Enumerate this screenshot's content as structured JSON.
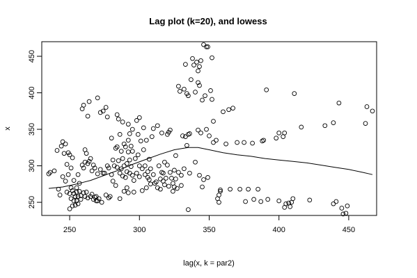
{
  "chart_data": {
    "type": "scatter",
    "title": "Lag plot (k=20), and lowess",
    "xlabel": "lag(x, k = par2)",
    "ylabel": "x",
    "xlim": [
      230,
      470
    ],
    "ylim": [
      232,
      470
    ],
    "x_ticks": [
      250,
      300,
      350,
      400,
      450
    ],
    "y_ticks": [
      250,
      300,
      350,
      400,
      450
    ],
    "grid": false,
    "legend": "none",
    "series": [
      {
        "points": [
          [
            235,
            289
          ],
          [
            236,
            291
          ],
          [
            239,
            293
          ],
          [
            241,
            321
          ],
          [
            242,
            268
          ],
          [
            243,
            260
          ],
          [
            244,
            327
          ],
          [
            245,
            333
          ],
          [
            245,
            285
          ],
          [
            246,
            317
          ],
          [
            247,
            330
          ],
          [
            247,
            279
          ],
          [
            248,
            302
          ],
          [
            248,
            264
          ],
          [
            249,
            318
          ],
          [
            249,
            288
          ],
          [
            250,
            262
          ],
          [
            250,
            241
          ],
          [
            250,
            315
          ],
          [
            251,
            297
          ],
          [
            251,
            270
          ],
          [
            251,
            255
          ],
          [
            252,
            311
          ],
          [
            252,
            266
          ],
          [
            252,
            245
          ],
          [
            253,
            280
          ],
          [
            253,
            262
          ],
          [
            253,
            252
          ],
          [
            254,
            258
          ],
          [
            254,
            246
          ],
          [
            255,
            270
          ],
          [
            255,
            264
          ],
          [
            255,
            252
          ],
          [
            256,
            288
          ],
          [
            256,
            258
          ],
          [
            256,
            248
          ],
          [
            257,
            276
          ],
          [
            257,
            265
          ],
          [
            258,
            259
          ],
          [
            258,
            254
          ],
          [
            259,
            378
          ],
          [
            259,
            301
          ],
          [
            260,
            383
          ],
          [
            260,
            297
          ],
          [
            260,
            263
          ],
          [
            261,
            322
          ],
          [
            261,
            305
          ],
          [
            261,
            258
          ],
          [
            262,
            317
          ],
          [
            262,
            264
          ],
          [
            263,
            368
          ],
          [
            263,
            303
          ],
          [
            263,
            256
          ],
          [
            264,
            388
          ],
          [
            264,
            306
          ],
          [
            265,
            310
          ],
          [
            265,
            258
          ],
          [
            266,
            293
          ],
          [
            266,
            261
          ],
          [
            267,
            301
          ],
          [
            267,
            254
          ],
          [
            268,
            297
          ],
          [
            268,
            257
          ],
          [
            269,
            258
          ],
          [
            269,
            252
          ],
          [
            270,
            393
          ],
          [
            270,
            289
          ],
          [
            270,
            252
          ],
          [
            271,
            255
          ],
          [
            272,
            373
          ],
          [
            272,
            295
          ],
          [
            273,
            250
          ],
          [
            274,
            375
          ],
          [
            274,
            290
          ],
          [
            275,
            290
          ],
          [
            276,
            380
          ],
          [
            276,
            260
          ],
          [
            277,
            367
          ],
          [
            277,
            300
          ],
          [
            278,
            297
          ],
          [
            278,
            256
          ],
          [
            279,
            258
          ],
          [
            280,
            338
          ],
          [
            280,
            288
          ],
          [
            281,
            308
          ],
          [
            281,
            279
          ],
          [
            282,
            300
          ],
          [
            283,
            324
          ],
          [
            283,
            273
          ],
          [
            284,
            370
          ],
          [
            284,
            326
          ],
          [
            284,
            298
          ],
          [
            285,
            364
          ],
          [
            285,
            307
          ],
          [
            286,
            343
          ],
          [
            286,
            290
          ],
          [
            286,
            255
          ],
          [
            287,
            320
          ],
          [
            287,
            296
          ],
          [
            288,
            360
          ],
          [
            288,
            310
          ],
          [
            288,
            286
          ],
          [
            289,
            330
          ],
          [
            289,
            300
          ],
          [
            289,
            265
          ],
          [
            290,
            326
          ],
          [
            290,
            284
          ],
          [
            291,
            303
          ],
          [
            291,
            292
          ],
          [
            291,
            270
          ],
          [
            292,
            357
          ],
          [
            292,
            335
          ],
          [
            292,
            319
          ],
          [
            292,
            263
          ],
          [
            293,
            344
          ],
          [
            293,
            308
          ],
          [
            293,
            290
          ],
          [
            294,
            327
          ],
          [
            294,
            299
          ],
          [
            295,
            350
          ],
          [
            295,
            320
          ],
          [
            295,
            287
          ],
          [
            296,
            280
          ],
          [
            296,
            264
          ],
          [
            297,
            310
          ],
          [
            298,
            362
          ],
          [
            298,
            290
          ],
          [
            299,
            343
          ],
          [
            299,
            315
          ],
          [
            300,
            366
          ],
          [
            300,
            300
          ],
          [
            300,
            285
          ],
          [
            301,
            334
          ],
          [
            302,
            296
          ],
          [
            302,
            266
          ],
          [
            303,
            352
          ],
          [
            303,
            322
          ],
          [
            304,
            300
          ],
          [
            304,
            288
          ],
          [
            305,
            335
          ],
          [
            305,
            270
          ],
          [
            306,
            292
          ],
          [
            306,
            284
          ],
          [
            307,
            309
          ],
          [
            307,
            281
          ],
          [
            308,
            296
          ],
          [
            308,
            275
          ],
          [
            309,
            340
          ],
          [
            310,
            351
          ],
          [
            310,
            288
          ],
          [
            311,
            276
          ],
          [
            312,
            278
          ],
          [
            313,
            355
          ],
          [
            313,
            270
          ],
          [
            314,
            300
          ],
          [
            315,
            282
          ],
          [
            315,
            268
          ],
          [
            316,
            345
          ],
          [
            316,
            291
          ],
          [
            317,
            290
          ],
          [
            317,
            279
          ],
          [
            318,
            305
          ],
          [
            318,
            274
          ],
          [
            319,
            283
          ],
          [
            320,
            343
          ],
          [
            320,
            301
          ],
          [
            321,
            346
          ],
          [
            321,
            272
          ],
          [
            322,
            349
          ],
          [
            322,
            291
          ],
          [
            323,
            283
          ],
          [
            324,
            276
          ],
          [
            324,
            265
          ],
          [
            325,
            294
          ],
          [
            325,
            271
          ],
          [
            326,
            314
          ],
          [
            326,
            282
          ],
          [
            327,
            269
          ],
          [
            328,
            409
          ],
          [
            328,
            291
          ],
          [
            329,
            402
          ],
          [
            330,
            287
          ],
          [
            330,
            273
          ],
          [
            331,
            341
          ],
          [
            332,
            405
          ],
          [
            332,
            296
          ],
          [
            333,
            439
          ],
          [
            333,
            340
          ],
          [
            334,
            399
          ],
          [
            334,
            328
          ],
          [
            335,
            396
          ],
          [
            335,
            343
          ],
          [
            335,
            240
          ],
          [
            336,
            344
          ],
          [
            336,
            290
          ],
          [
            337,
            418
          ],
          [
            338,
            447
          ],
          [
            339,
            438
          ],
          [
            340,
            401
          ],
          [
            340,
            305
          ],
          [
            341,
            442
          ],
          [
            342,
            430
          ],
          [
            342,
            414
          ],
          [
            342,
            349
          ],
          [
            343,
            436
          ],
          [
            343,
            410
          ],
          [
            343,
            287
          ],
          [
            344,
            444
          ],
          [
            344,
            345
          ],
          [
            345,
            390
          ],
          [
            345,
            271
          ],
          [
            346,
            466
          ],
          [
            346,
            281
          ],
          [
            347,
            396
          ],
          [
            348,
            463
          ],
          [
            348,
            350
          ],
          [
            349,
            463
          ],
          [
            349,
            284
          ],
          [
            350,
            341
          ],
          [
            351,
            403
          ],
          [
            352,
            448
          ],
          [
            352,
            391
          ],
          [
            353,
            361
          ],
          [
            353,
            332
          ],
          [
            355,
            335
          ],
          [
            356,
            255
          ],
          [
            357,
            260
          ],
          [
            357,
            250
          ],
          [
            358,
            265
          ],
          [
            358,
            267
          ],
          [
            360,
            374
          ],
          [
            362,
            330
          ],
          [
            364,
            377
          ],
          [
            365,
            268
          ],
          [
            367,
            379
          ],
          [
            370,
            332
          ],
          [
            372,
            268
          ],
          [
            375,
            332
          ],
          [
            376,
            251
          ],
          [
            378,
            268
          ],
          [
            381,
            331
          ],
          [
            382,
            254
          ],
          [
            385,
            268
          ],
          [
            387,
            251
          ],
          [
            388,
            334
          ],
          [
            389,
            335
          ],
          [
            391,
            404
          ],
          [
            392,
            254
          ],
          [
            398,
            338
          ],
          [
            400,
            252
          ],
          [
            400,
            345
          ],
          [
            403,
            340
          ],
          [
            404,
            345
          ],
          [
            404,
            243
          ],
          [
            405,
            248
          ],
          [
            407,
            249
          ],
          [
            408,
            244
          ],
          [
            409,
            250
          ],
          [
            410,
            255
          ],
          [
            411,
            399
          ],
          [
            416,
            353
          ],
          [
            422,
            253
          ],
          [
            433,
            355
          ],
          [
            439,
            359
          ],
          [
            439,
            248
          ],
          [
            441,
            251
          ],
          [
            443,
            386
          ],
          [
            445,
            242
          ],
          [
            446,
            234
          ],
          [
            448,
            235
          ],
          [
            449,
            245
          ],
          [
            462,
            358
          ],
          [
            463,
            381
          ],
          [
            467,
            375
          ]
        ]
      },
      {
        "line": "lowess",
        "points": [
          [
            235,
            269
          ],
          [
            245,
            271
          ],
          [
            255,
            275
          ],
          [
            265,
            280
          ],
          [
            275,
            287
          ],
          [
            285,
            294
          ],
          [
            295,
            302
          ],
          [
            305,
            309
          ],
          [
            315,
            316
          ],
          [
            325,
            322
          ],
          [
            335,
            325
          ],
          [
            342,
            325
          ],
          [
            350,
            322
          ],
          [
            360,
            318
          ],
          [
            370,
            315
          ],
          [
            380,
            313
          ],
          [
            390,
            310
          ],
          [
            400,
            308
          ],
          [
            410,
            306
          ],
          [
            420,
            304
          ],
          [
            430,
            301
          ],
          [
            440,
            298
          ],
          [
            450,
            295
          ],
          [
            460,
            291
          ],
          [
            467,
            288
          ]
        ]
      }
    ]
  }
}
